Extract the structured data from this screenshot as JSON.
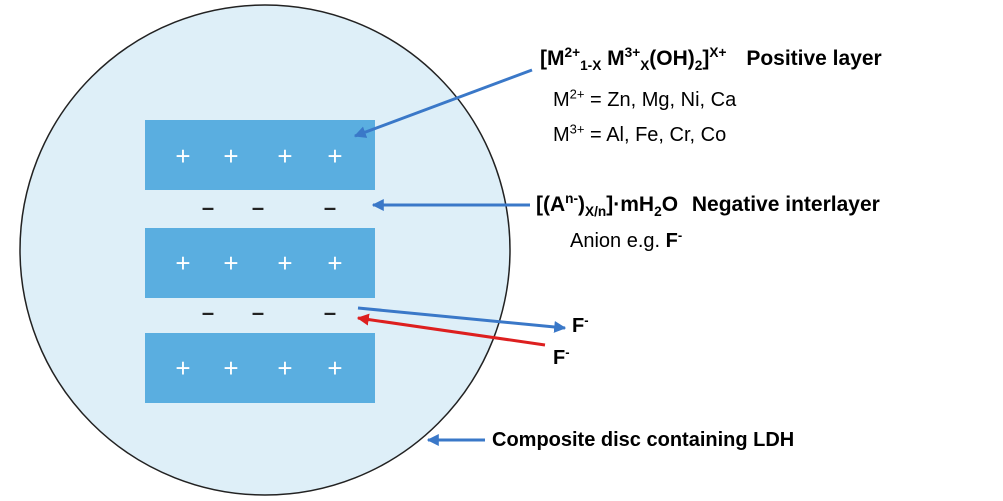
{
  "colors": {
    "disc_fill": "#deeff8",
    "disc_stroke": "#222222",
    "layer_fill": "#5aaee0",
    "blue_arrow": "#3a78c8",
    "red_arrow": "#dd1f1f",
    "text": "#000000"
  },
  "disc": {
    "label": "Composite disc containing LDH"
  },
  "layers": [
    {
      "charges": [
        "+",
        "+",
        "+",
        "+"
      ]
    },
    {
      "charges": [
        "+",
        "+",
        "+",
        "+"
      ]
    },
    {
      "charges": [
        "+",
        "+",
        "+",
        "+"
      ]
    }
  ],
  "interlayers": [
    {
      "charges": [
        "–",
        "–",
        "–"
      ]
    },
    {
      "charges": [
        "–",
        "–",
        "–"
      ]
    }
  ],
  "positive_layer": {
    "formula": {
      "open": "[M",
      "sup1": "2+",
      "sub1": "1-X",
      "m3": " M",
      "sup2": "3+",
      "sub2": "X",
      "oh": "(OH)",
      "sub3": "2",
      "close": "]",
      "sup3": "X+"
    },
    "title": "Positive layer",
    "m2_line": {
      "prefix": "M",
      "sup": "2+",
      "rest": " = Zn, Mg, Ni, Ca"
    },
    "m3_line": {
      "prefix": "M",
      "sup": "3+",
      "rest": " = Al, Fe, Cr, Co"
    }
  },
  "negative_interlayer": {
    "formula": {
      "open": "[(A",
      "sup1": "n-",
      "close1": ")",
      "sub1": "X/n",
      "rest": "]·mH",
      "sub2": "2",
      "end": "O"
    },
    "title": "Negative interlayer",
    "anion_line": {
      "prefix": "Anion e.g. ",
      "ion": "F",
      "sup": "-"
    }
  },
  "exchange": {
    "out_ion": {
      "ion": "F",
      "sup": "-"
    },
    "in_ion": {
      "ion": "F",
      "sup": "-"
    }
  }
}
